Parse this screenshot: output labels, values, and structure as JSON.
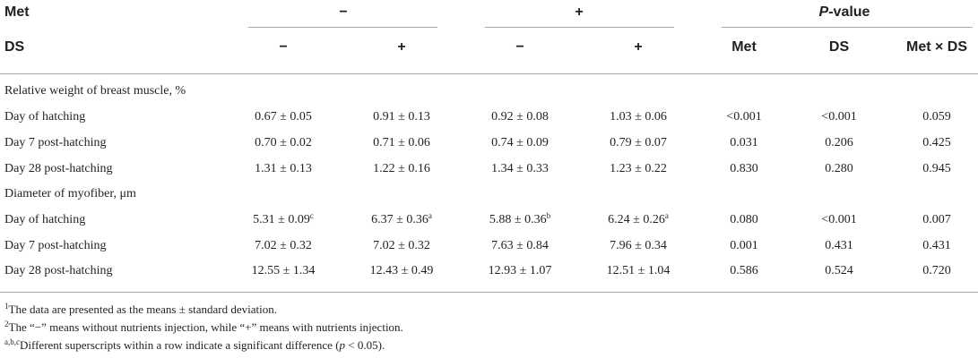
{
  "header": {
    "row1": {
      "label": "Met",
      "met_minus": "−",
      "met_plus": "+",
      "pvalue_prefix": "P",
      "pvalue_suffix": "-value"
    },
    "row2": {
      "label": "DS",
      "ds_minus_1": "−",
      "ds_plus_1": "+",
      "ds_minus_2": "−",
      "ds_plus_2": "+",
      "p_met": "Met",
      "p_ds": "DS",
      "p_int": "Met × DS"
    }
  },
  "sections": [
    {
      "title": "Relative weight of breast muscle, %",
      "rows": [
        {
          "label": "Day of hatching",
          "cells": [
            {
              "v": "0.67 ± 0.05",
              "sup": ""
            },
            {
              "v": "0.91 ± 0.13",
              "sup": ""
            },
            {
              "v": "0.92 ± 0.08",
              "sup": ""
            },
            {
              "v": "1.03 ± 0.06",
              "sup": ""
            }
          ],
          "p": [
            "<0.001",
            "<0.001",
            "0.059"
          ]
        },
        {
          "label": "Day 7 post-hatching",
          "cells": [
            {
              "v": "0.70 ± 0.02",
              "sup": ""
            },
            {
              "v": "0.71 ± 0.06",
              "sup": ""
            },
            {
              "v": "0.74 ± 0.09",
              "sup": ""
            },
            {
              "v": "0.79 ± 0.07",
              "sup": ""
            }
          ],
          "p": [
            "0.031",
            "0.206",
            "0.425"
          ]
        },
        {
          "label": "Day 28 post-hatching",
          "cells": [
            {
              "v": "1.31 ± 0.13",
              "sup": ""
            },
            {
              "v": "1.22 ± 0.16",
              "sup": ""
            },
            {
              "v": "1.34 ± 0.33",
              "sup": ""
            },
            {
              "v": "1.23 ± 0.22",
              "sup": ""
            }
          ],
          "p": [
            "0.830",
            "0.280",
            "0.945"
          ]
        }
      ]
    },
    {
      "title": "Diameter of myofiber, μm",
      "rows": [
        {
          "label": "Day of hatching",
          "cells": [
            {
              "v": "5.31 ± 0.09",
              "sup": "c"
            },
            {
              "v": "6.37 ± 0.36",
              "sup": "a"
            },
            {
              "v": "5.88 ± 0.36",
              "sup": "b"
            },
            {
              "v": "6.24 ± 0.26",
              "sup": "a"
            }
          ],
          "p": [
            "0.080",
            "<0.001",
            "0.007"
          ]
        },
        {
          "label": "Day 7 post-hatching",
          "cells": [
            {
              "v": "7.02 ± 0.32",
              "sup": ""
            },
            {
              "v": "7.02 ± 0.32",
              "sup": ""
            },
            {
              "v": "7.63 ± 0.84",
              "sup": ""
            },
            {
              "v": "7.96 ± 0.34",
              "sup": ""
            }
          ],
          "p": [
            "0.001",
            "0.431",
            "0.431"
          ]
        },
        {
          "label": "Day 28 post-hatching",
          "cells": [
            {
              "v": "12.55 ± 1.34",
              "sup": ""
            },
            {
              "v": "12.43 ± 0.49",
              "sup": ""
            },
            {
              "v": "12.93 ± 1.07",
              "sup": ""
            },
            {
              "v": "12.51 ± 1.04",
              "sup": ""
            }
          ],
          "p": [
            "0.586",
            "0.524",
            "0.720"
          ]
        }
      ]
    }
  ],
  "footnotes": {
    "n1_sup": "1",
    "n1": "The data are presented as the means ± standard deviation.",
    "n2_sup": "2",
    "n2": "The “−” means without nutrients injection, while “+” means with nutrients injection.",
    "n3_sup": "a,b,c",
    "n3_a": "Different superscripts within a row indicate a significant difference (",
    "n3_p": "p",
    "n3_b": " < 0.05)."
  }
}
